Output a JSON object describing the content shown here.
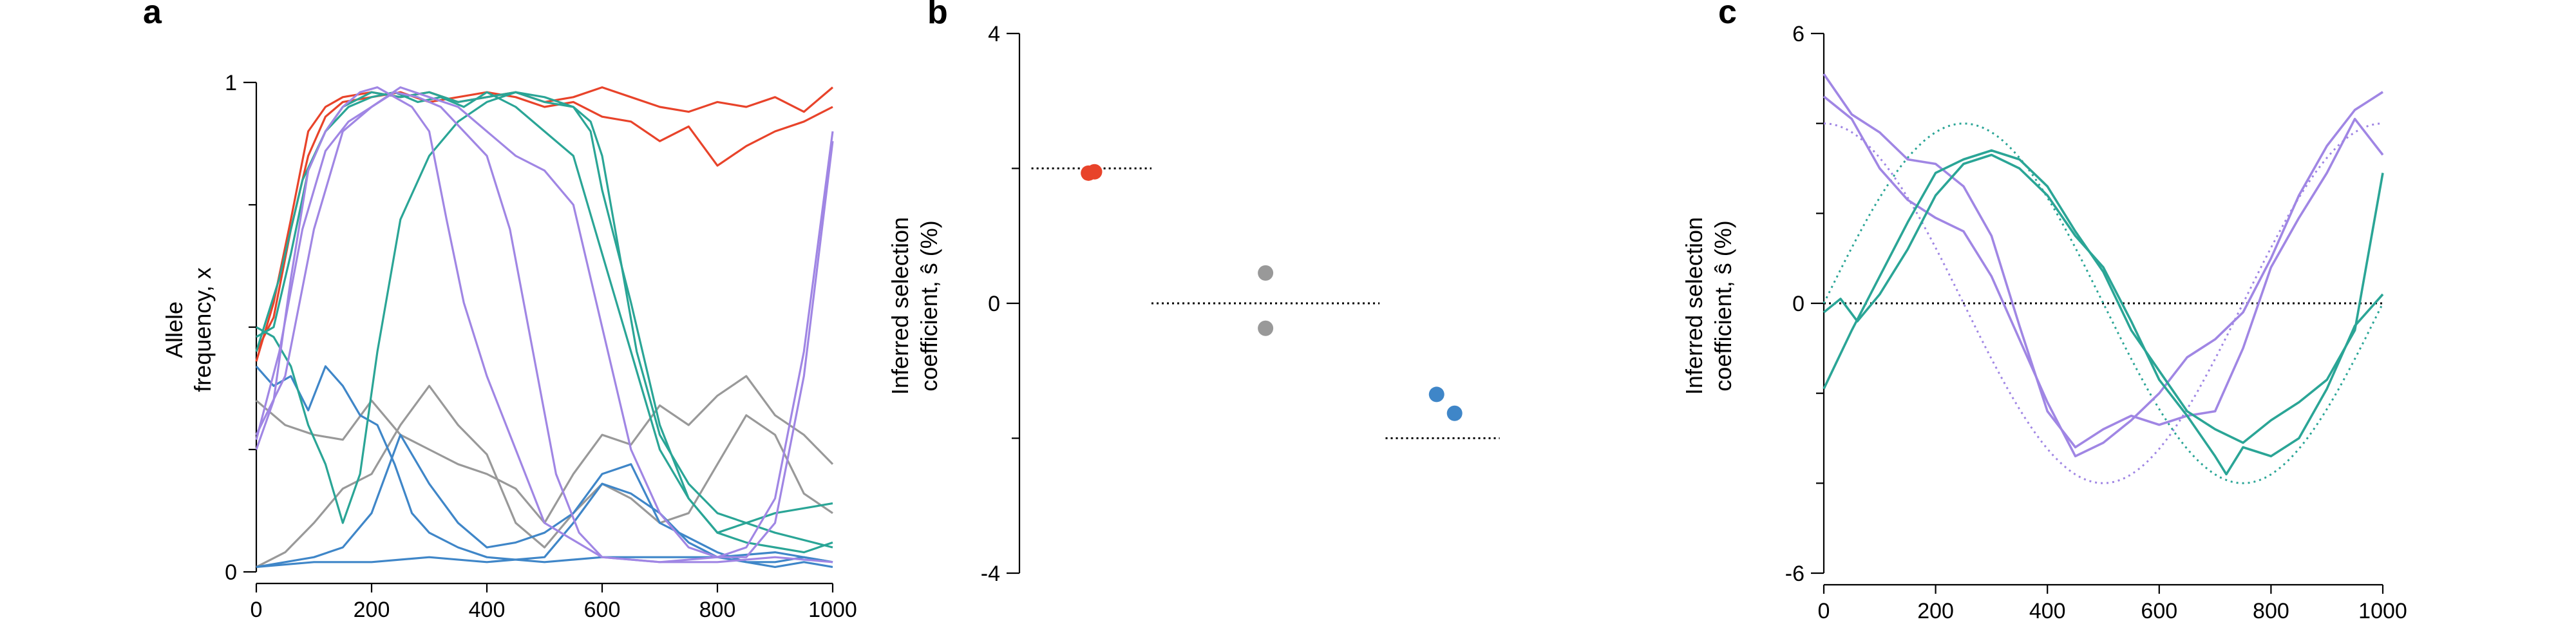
{
  "colors": {
    "red": "#e8432a",
    "gray": "#999999",
    "blue": "#3f86c8",
    "teal": "#2aa596",
    "purple": "#a086e4",
    "black": "#000000"
  },
  "chart_data": [
    {
      "panel_label": "a",
      "type": "line",
      "xlabel": "",
      "ylabel_lines": [
        "Allele",
        "frequency, x"
      ],
      "xlim": [
        0,
        1000
      ],
      "ylim": [
        0,
        1
      ],
      "xticks": [
        0,
        200,
        400,
        600,
        800,
        1000
      ],
      "yticks": [
        0,
        1
      ],
      "ytick_labels": [
        "0",
        "1"
      ],
      "minor_yticks": [
        0.25,
        0.5,
        0.75
      ],
      "series": [
        {
          "color": "red",
          "x": [
            0,
            30,
            60,
            90,
            120,
            150,
            200,
            250,
            300,
            350,
            400,
            450,
            500,
            550,
            600,
            650,
            700,
            750,
            800,
            850,
            900,
            950,
            1000
          ],
          "y": [
            0.43,
            0.55,
            0.72,
            0.9,
            0.95,
            0.97,
            0.98,
            0.97,
            0.98,
            0.96,
            0.97,
            0.98,
            0.96,
            0.97,
            0.99,
            0.97,
            0.95,
            0.94,
            0.96,
            0.95,
            0.97,
            0.94,
            0.99
          ]
        },
        {
          "color": "red",
          "x": [
            0,
            30,
            60,
            90,
            120,
            150,
            200,
            250,
            300,
            350,
            400,
            450,
            500,
            550,
            600,
            650,
            700,
            750,
            800,
            850,
            900,
            950,
            1000
          ],
          "y": [
            0.45,
            0.52,
            0.7,
            0.85,
            0.93,
            0.96,
            0.97,
            0.98,
            0.96,
            0.97,
            0.98,
            0.97,
            0.95,
            0.96,
            0.93,
            0.92,
            0.88,
            0.91,
            0.83,
            0.87,
            0.9,
            0.92,
            0.95
          ]
        },
        {
          "color": "gray",
          "x": [
            0,
            50,
            100,
            150,
            200,
            250,
            300,
            350,
            400,
            450,
            500,
            550,
            600,
            650,
            700,
            750,
            800,
            850,
            900,
            950,
            1000
          ],
          "y": [
            0.35,
            0.3,
            0.28,
            0.27,
            0.35,
            0.28,
            0.25,
            0.22,
            0.2,
            0.17,
            0.1,
            0.2,
            0.28,
            0.26,
            0.34,
            0.3,
            0.36,
            0.4,
            0.32,
            0.28,
            0.22
          ]
        },
        {
          "color": "gray",
          "x": [
            0,
            50,
            100,
            150,
            200,
            250,
            300,
            350,
            400,
            450,
            500,
            550,
            600,
            650,
            700,
            750,
            800,
            850,
            900,
            950,
            1000
          ],
          "y": [
            0.01,
            0.04,
            0.1,
            0.17,
            0.2,
            0.3,
            0.38,
            0.3,
            0.24,
            0.1,
            0.05,
            0.12,
            0.18,
            0.15,
            0.1,
            0.12,
            0.22,
            0.32,
            0.28,
            0.16,
            0.12
          ]
        },
        {
          "color": "blue",
          "x": [
            0,
            30,
            60,
            90,
            120,
            150,
            180,
            210,
            240,
            270,
            300,
            350,
            400,
            500,
            600,
            700,
            800,
            900,
            1000
          ],
          "y": [
            0.42,
            0.38,
            0.4,
            0.33,
            0.42,
            0.38,
            0.32,
            0.3,
            0.22,
            0.12,
            0.08,
            0.05,
            0.03,
            0.02,
            0.03,
            0.03,
            0.03,
            0.04,
            0.02
          ]
        },
        {
          "color": "blue",
          "x": [
            0,
            50,
            100,
            150,
            200,
            250,
            300,
            350,
            400,
            450,
            500,
            550,
            600,
            650,
            700,
            750,
            800,
            850,
            900,
            950,
            1000
          ],
          "y": [
            0.01,
            0.02,
            0.03,
            0.05,
            0.12,
            0.28,
            0.18,
            0.1,
            0.05,
            0.06,
            0.08,
            0.12,
            0.2,
            0.22,
            0.1,
            0.07,
            0.04,
            0.02,
            0.01,
            0.02,
            0.01
          ]
        },
        {
          "color": "blue",
          "x": [
            0,
            100,
            200,
            300,
            400,
            500,
            550,
            600,
            650,
            700,
            750,
            800,
            850,
            900,
            950,
            1000
          ],
          "y": [
            0.01,
            0.02,
            0.02,
            0.03,
            0.02,
            0.03,
            0.1,
            0.18,
            0.16,
            0.12,
            0.06,
            0.03,
            0.02,
            0.02,
            0.03,
            0.02
          ]
        },
        {
          "color": "teal",
          "x": [
            0,
            30,
            60,
            90,
            120,
            150,
            200,
            250,
            300,
            350,
            400,
            450,
            500,
            550,
            580,
            600,
            630,
            660,
            700,
            750,
            800,
            900,
            1000
          ],
          "y": [
            0.48,
            0.5,
            0.65,
            0.82,
            0.9,
            0.95,
            0.98,
            0.97,
            0.98,
            0.96,
            0.97,
            0.98,
            0.96,
            0.95,
            0.92,
            0.85,
            0.65,
            0.45,
            0.28,
            0.18,
            0.12,
            0.08,
            0.05
          ]
        },
        {
          "color": "teal",
          "x": [
            0,
            30,
            60,
            90,
            120,
            150,
            180,
            210,
            250,
            300,
            350,
            400,
            450,
            500,
            550,
            580,
            600,
            650,
            700,
            750,
            800,
            900,
            1000
          ],
          "y": [
            0.5,
            0.48,
            0.42,
            0.3,
            0.22,
            0.1,
            0.2,
            0.45,
            0.72,
            0.85,
            0.92,
            0.96,
            0.98,
            0.97,
            0.95,
            0.9,
            0.78,
            0.55,
            0.3,
            0.15,
            0.08,
            0.12,
            0.14
          ]
        },
        {
          "color": "teal",
          "x": [
            0,
            40,
            80,
            120,
            160,
            200,
            240,
            280,
            320,
            360,
            400,
            450,
            500,
            550,
            600,
            650,
            700,
            750,
            800,
            850,
            900,
            950,
            1000
          ],
          "y": [
            0.45,
            0.6,
            0.8,
            0.9,
            0.95,
            0.97,
            0.98,
            0.96,
            0.97,
            0.95,
            0.98,
            0.95,
            0.9,
            0.85,
            0.65,
            0.45,
            0.25,
            0.15,
            0.08,
            0.06,
            0.05,
            0.04,
            0.06
          ]
        },
        {
          "color": "purple",
          "x": [
            0,
            30,
            60,
            90,
            120,
            150,
            180,
            210,
            240,
            270,
            300,
            330,
            360,
            400,
            450,
            500,
            600,
            700,
            800,
            900,
            1000
          ],
          "y": [
            0.25,
            0.35,
            0.6,
            0.82,
            0.9,
            0.95,
            0.98,
            0.99,
            0.97,
            0.95,
            0.9,
            0.72,
            0.55,
            0.4,
            0.25,
            0.1,
            0.03,
            0.02,
            0.02,
            0.03,
            0.02
          ]
        },
        {
          "color": "purple",
          "x": [
            0,
            40,
            80,
            120,
            160,
            200,
            240,
            280,
            320,
            360,
            400,
            440,
            480,
            520,
            560,
            600,
            700,
            800,
            850,
            900,
            950,
            1000
          ],
          "y": [
            0.27,
            0.45,
            0.7,
            0.86,
            0.92,
            0.95,
            0.98,
            0.97,
            0.95,
            0.9,
            0.85,
            0.7,
            0.45,
            0.2,
            0.08,
            0.03,
            0.02,
            0.03,
            0.05,
            0.15,
            0.45,
            0.9
          ]
        },
        {
          "color": "purple",
          "x": [
            0,
            50,
            100,
            150,
            200,
            250,
            300,
            350,
            400,
            450,
            500,
            550,
            600,
            650,
            700,
            750,
            800,
            850,
            900,
            950,
            1000
          ],
          "y": [
            0.28,
            0.4,
            0.7,
            0.9,
            0.95,
            0.99,
            0.97,
            0.95,
            0.9,
            0.85,
            0.82,
            0.75,
            0.5,
            0.25,
            0.12,
            0.05,
            0.03,
            0.03,
            0.1,
            0.4,
            0.88
          ]
        }
      ]
    },
    {
      "panel_label": "b",
      "type": "scatter",
      "ylabel_lines": [
        "Inferred selection",
        "coefficient, ŝ (%)"
      ],
      "ylim": [
        -4,
        4
      ],
      "yticks": [
        -4,
        0,
        4
      ],
      "ytick_labels": [
        "-4",
        "0",
        "4"
      ],
      "minor_yticks": [
        -2,
        2
      ],
      "points": [
        {
          "group": "red",
          "x": 0.115,
          "y": 1.93
        },
        {
          "group": "red",
          "x": 0.125,
          "y": 1.95
        },
        {
          "group": "gray",
          "x": 0.41,
          "y": 0.45
        },
        {
          "group": "gray",
          "x": 0.41,
          "y": -0.37
        },
        {
          "group": "blue",
          "x": 0.695,
          "y": -1.35
        },
        {
          "group": "blue",
          "x": 0.725,
          "y": -1.63
        }
      ],
      "true_values": [
        {
          "group": "red",
          "y": 2,
          "x_range": [
            0.02,
            0.22
          ]
        },
        {
          "group": "gray",
          "y": 0,
          "x_range": [
            0.22,
            0.6
          ]
        },
        {
          "group": "blue",
          "y": -2,
          "x_range": [
            0.61,
            0.8
          ]
        }
      ]
    },
    {
      "panel_label": "c",
      "type": "line",
      "ylabel_lines": [
        "Inferred selection",
        "coefficient, ŝ (%)"
      ],
      "xlim": [
        0,
        1000
      ],
      "ylim": [
        -6,
        6
      ],
      "xticks": [
        0,
        200,
        400,
        600,
        800,
        1000
      ],
      "yticks": [
        -6,
        0,
        6
      ],
      "ytick_labels": [
        "-6",
        "0",
        "6"
      ],
      "minor_yticks": [
        -4,
        -2,
        2,
        4
      ],
      "zero_line": 0,
      "true_curves": [
        {
          "color": "purple",
          "amplitude": 4,
          "period": 1000,
          "phase_x": 0,
          "form": "cos"
        },
        {
          "color": "teal",
          "amplitude": 4,
          "period": 1000,
          "phase_x": 250,
          "form": "cos"
        }
      ],
      "series": [
        {
          "color": "purple",
          "x": [
            0,
            50,
            100,
            150,
            200,
            250,
            300,
            350,
            400,
            450,
            500,
            550,
            600,
            650,
            700,
            750,
            800,
            850,
            900,
            950,
            1000
          ],
          "y": [
            5.1,
            4.2,
            3.8,
            3.2,
            3.1,
            2.6,
            1.5,
            -0.5,
            -2.4,
            -3.2,
            -2.8,
            -2.5,
            -2.7,
            -2.5,
            -2.4,
            -1.0,
            0.8,
            1.9,
            2.9,
            4.1,
            3.3
          ]
        },
        {
          "color": "purple",
          "x": [
            0,
            50,
            100,
            150,
            200,
            250,
            300,
            350,
            400,
            450,
            500,
            550,
            600,
            650,
            700,
            750,
            800,
            850,
            900,
            950,
            1000
          ],
          "y": [
            4.6,
            4.1,
            3.0,
            2.3,
            1.9,
            1.6,
            0.6,
            -0.8,
            -2.2,
            -3.4,
            -3.1,
            -2.6,
            -2.0,
            -1.2,
            -0.8,
            -0.2,
            1.0,
            2.4,
            3.5,
            4.3,
            4.7
          ]
        },
        {
          "color": "teal",
          "x": [
            0,
            30,
            60,
            100,
            150,
            200,
            250,
            300,
            350,
            400,
            450,
            500,
            550,
            600,
            650,
            700,
            720,
            750,
            800,
            850,
            900,
            950,
            1000
          ],
          "y": [
            -0.2,
            0.1,
            -0.4,
            0.2,
            1.2,
            2.4,
            3.1,
            3.3,
            3.0,
            2.4,
            1.5,
            0.8,
            -0.4,
            -1.7,
            -2.5,
            -3.4,
            -3.8,
            -3.2,
            -3.4,
            -3.0,
            -1.9,
            -0.5,
            0.2
          ]
        },
        {
          "color": "teal",
          "x": [
            0,
            50,
            100,
            150,
            200,
            250,
            300,
            350,
            400,
            450,
            500,
            550,
            600,
            650,
            700,
            750,
            800,
            850,
            900,
            950,
            1000
          ],
          "y": [
            -1.9,
            -0.6,
            0.6,
            1.8,
            2.9,
            3.2,
            3.4,
            3.2,
            2.6,
            1.6,
            0.7,
            -0.6,
            -1.5,
            -2.4,
            -2.8,
            -3.1,
            -2.6,
            -2.2,
            -1.7,
            -0.6,
            2.9
          ]
        }
      ]
    }
  ]
}
